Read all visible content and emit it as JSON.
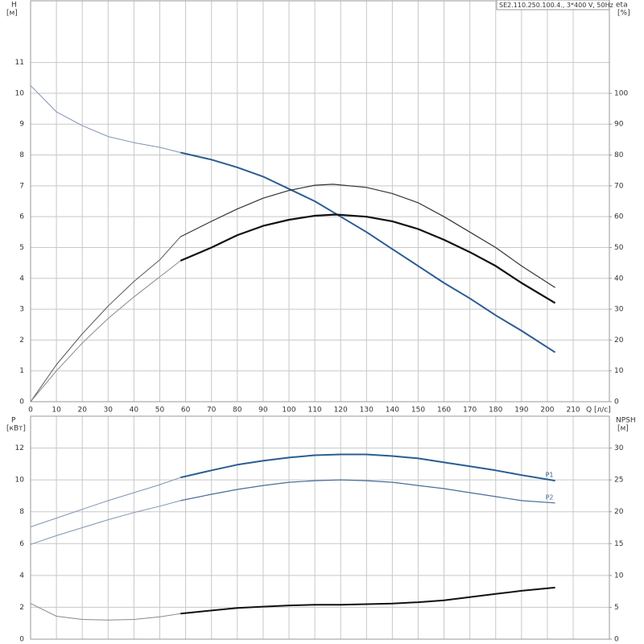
{
  "chart_data": [
    {
      "type": "line",
      "title": "SE2.110.250.100.4., 3*400 V, 50Hz",
      "ylabel": "H",
      "yunit": "[м]",
      "y2label": "eta",
      "y2unit": "[%]",
      "xlabel": "Q [л/с]",
      "xlim": [
        0,
        224
      ],
      "xticks": [
        0,
        10,
        20,
        30,
        40,
        50,
        60,
        70,
        80,
        90,
        100,
        110,
        120,
        130,
        140,
        150,
        160,
        170,
        180,
        190,
        200,
        210
      ],
      "xtick_labels": true,
      "ylim": [
        0,
        13
      ],
      "yticks": [
        0,
        1,
        2,
        3,
        4,
        5,
        6,
        7,
        8,
        9,
        10,
        11
      ],
      "y2lim": [
        0,
        130
      ],
      "y2ticks": [
        0,
        10,
        20,
        30,
        40,
        50,
        60,
        70,
        80,
        90,
        100
      ],
      "grid": true,
      "series": [
        {
          "color": "#7f93b3",
          "width": 1,
          "x": [
            0,
            10,
            20,
            30,
            40,
            50,
            58
          ],
          "values": [
            10.25,
            9.4,
            8.95,
            8.6,
            8.4,
            8.25,
            8.08
          ]
        },
        {
          "color": "#2b5d93",
          "width": 2,
          "x": [
            58,
            70,
            80,
            90,
            100,
            110,
            118,
            130,
            140,
            150,
            160,
            170,
            180,
            190,
            203
          ],
          "values": [
            8.08,
            7.85,
            7.6,
            7.3,
            6.9,
            6.5,
            6.1,
            5.5,
            4.95,
            4.4,
            3.85,
            3.35,
            2.8,
            2.3,
            1.6
          ]
        },
        {
          "color": "#555555",
          "width": 1,
          "axis": "y2",
          "x": [
            0,
            10,
            20,
            30,
            40,
            50,
            58
          ],
          "values": [
            0,
            12,
            22,
            31,
            39,
            46,
            53.5
          ]
        },
        {
          "color": "#333333",
          "width": 1.2,
          "axis": "y2",
          "x": [
            58,
            70,
            80,
            90,
            100,
            110,
            117,
            130,
            140,
            150,
            160,
            170,
            180,
            190,
            203
          ],
          "values": [
            53.5,
            58.5,
            62.5,
            66,
            68.5,
            70.2,
            70.5,
            69.5,
            67.5,
            64.5,
            60,
            55,
            50,
            44,
            37
          ]
        },
        {
          "color": "#888888",
          "width": 1,
          "axis": "y2",
          "x": [
            0,
            10,
            20,
            30,
            40,
            50,
            58
          ],
          "values": [
            0,
            10,
            19,
            27,
            34,
            40.5,
            45.7
          ]
        },
        {
          "color": "#111111",
          "width": 2.2,
          "axis": "y2",
          "x": [
            58,
            70,
            80,
            90,
            100,
            110,
            118,
            130,
            140,
            150,
            160,
            170,
            180,
            190,
            203
          ],
          "values": [
            45.7,
            50,
            54,
            57,
            59,
            60.3,
            60.7,
            60,
            58.5,
            56,
            52.5,
            48.5,
            44,
            38.5,
            32
          ]
        }
      ]
    },
    {
      "type": "line",
      "ylabel": "P",
      "yunit": "[кВт]",
      "y2label": "NPSH",
      "y2unit": "[м]",
      "xlim": [
        0,
        224
      ],
      "xticks": [
        0,
        10,
        20,
        30,
        40,
        50,
        60,
        70,
        80,
        90,
        100,
        110,
        120,
        130,
        140,
        150,
        160,
        170,
        180,
        190,
        200,
        210
      ],
      "xtick_labels": false,
      "ylim": [
        0,
        14
      ],
      "yticks": [
        0,
        2,
        4,
        6,
        8,
        10,
        12
      ],
      "y2lim": [
        0,
        35
      ],
      "y2ticks": [
        0,
        5,
        10,
        15,
        20,
        25,
        30
      ],
      "grid": true,
      "series": [
        {
          "color": "#7f93b3",
          "width": 1,
          "x": [
            0,
            10,
            20,
            30,
            40,
            50,
            58
          ],
          "values": [
            7.05,
            7.6,
            8.15,
            8.7,
            9.2,
            9.7,
            10.15
          ]
        },
        {
          "name": "P1",
          "color": "#2b5d93",
          "width": 2,
          "x": [
            58,
            70,
            80,
            90,
            100,
            110,
            120,
            130,
            140,
            150,
            160,
            170,
            180,
            190,
            203
          ],
          "values": [
            10.15,
            10.6,
            10.95,
            11.2,
            11.4,
            11.55,
            11.6,
            11.6,
            11.5,
            11.35,
            11.1,
            10.85,
            10.6,
            10.3,
            9.95
          ]
        },
        {
          "color": "#7f93b3",
          "width": 1,
          "x": [
            0,
            10,
            20,
            30,
            40,
            50,
            58
          ],
          "values": [
            5.95,
            6.5,
            7.0,
            7.5,
            7.95,
            8.35,
            8.7
          ]
        },
        {
          "name": "P2",
          "color": "#4a6d99",
          "width": 1.2,
          "x": [
            58,
            70,
            80,
            90,
            100,
            110,
            120,
            130,
            140,
            150,
            160,
            170,
            180,
            190,
            203
          ],
          "values": [
            8.7,
            9.1,
            9.4,
            9.65,
            9.85,
            9.95,
            10.0,
            9.95,
            9.85,
            9.65,
            9.45,
            9.2,
            8.95,
            8.7,
            8.55
          ]
        },
        {
          "color": "#888888",
          "width": 1,
          "axis": "y2",
          "x": [
            0,
            10,
            20,
            30,
            40,
            50,
            58
          ],
          "values": [
            5.6,
            3.6,
            3.1,
            3.0,
            3.1,
            3.5,
            4.0
          ]
        },
        {
          "color": "#111111",
          "width": 2,
          "axis": "y2",
          "x": [
            58,
            70,
            80,
            90,
            100,
            110,
            120,
            130,
            140,
            150,
            160,
            170,
            180,
            190,
            203
          ],
          "values": [
            4.0,
            4.5,
            4.9,
            5.1,
            5.3,
            5.4,
            5.4,
            5.5,
            5.6,
            5.8,
            6.1,
            6.6,
            7.1,
            7.6,
            8.1
          ]
        }
      ]
    }
  ]
}
